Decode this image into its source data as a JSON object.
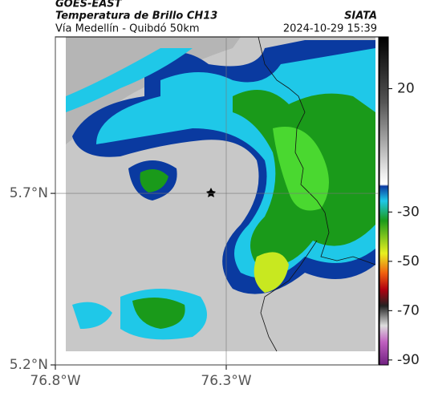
{
  "header": {
    "source": "GOES-EAST",
    "title": "Temperatura de Brillo CH13",
    "subtitle": "Vía Medellín - Quibdó 50km",
    "agency": "SIATA",
    "timestamp": "2024-10-29 15:39"
  },
  "map": {
    "xlim": [
      -76.8,
      -75.854
    ],
    "ylim": [
      5.2,
      6.156
    ],
    "xticks": [
      {
        "value": -76.8,
        "label": "76.8°W"
      },
      {
        "value": -76.3,
        "label": "76.3°W"
      }
    ],
    "yticks": [
      {
        "value": 5.2,
        "label": "5.2°N"
      },
      {
        "value": 5.7,
        "label": "5.7°N"
      }
    ]
  },
  "colorbar": {
    "lim": [
      -92,
      41
    ],
    "ticks": [
      20,
      -30,
      -50,
      -70,
      -90
    ]
  }
}
